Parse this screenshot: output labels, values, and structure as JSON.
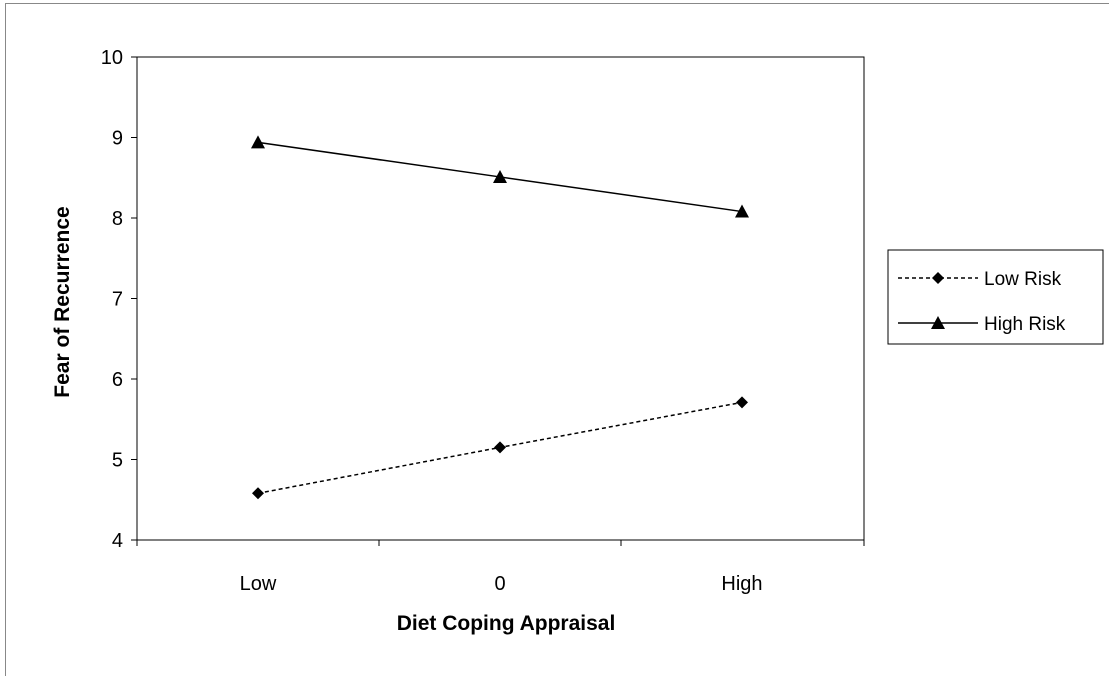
{
  "chart_data": {
    "type": "line",
    "categories": [
      "Low",
      "0",
      "High"
    ],
    "series": [
      {
        "name": "Low Risk",
        "values": [
          4.58,
          5.15,
          5.71
        ],
        "marker": "diamond",
        "line": "dashed"
      },
      {
        "name": "High Risk",
        "values": [
          8.94,
          8.51,
          8.08
        ],
        "marker": "triangle",
        "line": "solid"
      }
    ],
    "xlabel": "Diet Coping Appraisal",
    "ylabel": "Fear of Recurrence",
    "ylim": [
      4,
      10
    ],
    "yticks": [
      4,
      5,
      6,
      7,
      8,
      9,
      10
    ],
    "grid": false,
    "legend_position": "right",
    "colors": {
      "line": "#000000",
      "background": "#ffffff"
    }
  }
}
